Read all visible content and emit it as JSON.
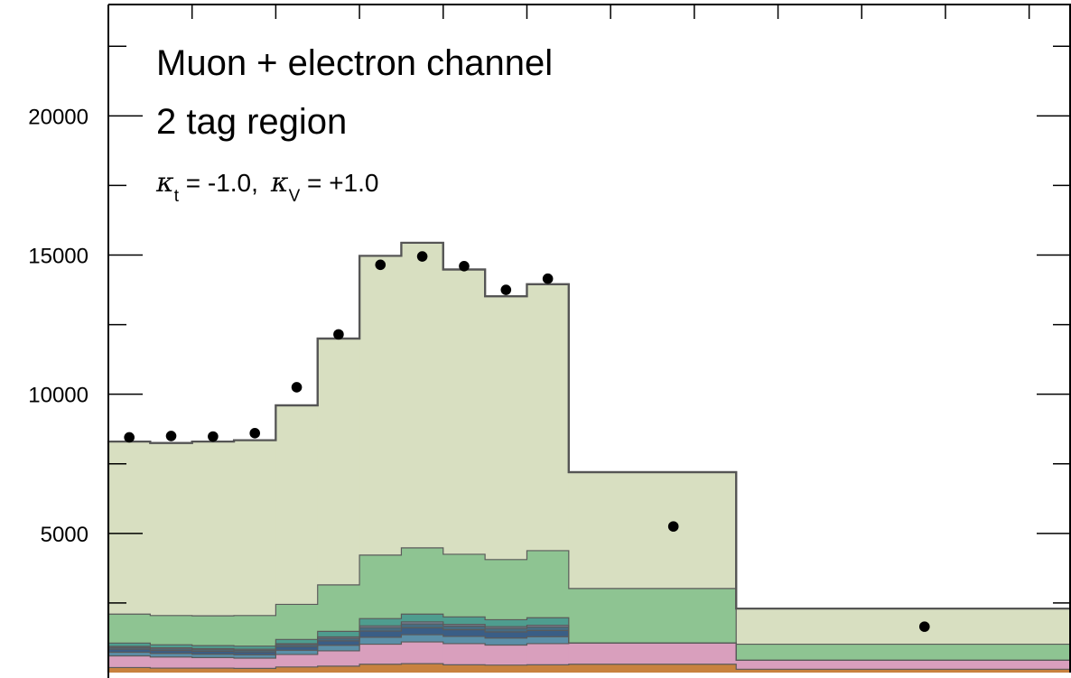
{
  "chart_data": {
    "type": "stacked-histogram",
    "annotations": {
      "line1": "Muon + electron channel",
      "line2": "2 tag region",
      "kappa_symbol": "κ",
      "kappa_t_sub": "t",
      "kappa_t_value": " = -1.0,",
      "kappa_v_sub": "V",
      "kappa_v_value": " = +1.0"
    },
    "xlim": [
      0,
      23
    ],
    "ylim": [
      0,
      24000
    ],
    "yticks": [
      5000,
      10000,
      15000,
      20000
    ],
    "ytick_labels": [
      "5000",
      "10000",
      "15000",
      "20000"
    ],
    "bin_edges": [
      0,
      1,
      2,
      3,
      4,
      5,
      6,
      7,
      8,
      9,
      10,
      11,
      15,
      23
    ],
    "stack": [
      {
        "color": "#c8823f",
        "values": [
          180,
          160,
          160,
          150,
          200,
          230,
          300,
          320,
          280,
          270,
          280,
          300,
          120
        ]
      },
      {
        "color": "#d99fbd",
        "values": [
          420,
          400,
          380,
          370,
          450,
          550,
          720,
          780,
          760,
          720,
          760,
          760,
          320
        ]
      },
      {
        "color": "#5b8fa8",
        "values": [
          130,
          130,
          120,
          120,
          150,
          200,
          250,
          260,
          260,
          250,
          250,
          0,
          0
        ]
      },
      {
        "color": "#3a5e86",
        "values": [
          110,
          100,
          100,
          100,
          130,
          160,
          220,
          250,
          240,
          220,
          220,
          0,
          0
        ]
      },
      {
        "color": "#466c82",
        "values": [
          60,
          60,
          60,
          60,
          70,
          90,
          130,
          140,
          130,
          130,
          130,
          0,
          0
        ]
      },
      {
        "color": "#7d8aa4",
        "values": [
          40,
          40,
          40,
          40,
          40,
          50,
          60,
          70,
          60,
          60,
          60,
          0,
          0
        ]
      },
      {
        "color": "#4e9d8f",
        "values": [
          120,
          110,
          110,
          110,
          150,
          200,
          260,
          280,
          270,
          250,
          270,
          0,
          0
        ]
      },
      {
        "color": "#8ec492",
        "values": [
          1040,
          1050,
          1070,
          1100,
          1260,
          1670,
          2280,
          2380,
          2250,
          2160,
          2410,
          1960,
          580
        ]
      },
      {
        "color": "#d8dfc1",
        "values": [
          6200,
          6200,
          6260,
          6300,
          7150,
          8850,
          10750,
          10960,
          10230,
          9460,
          9570,
          4180,
          1280
        ]
      }
    ],
    "data_points": {
      "x": [
        0.5,
        1.5,
        2.5,
        3.5,
        4.5,
        5.5,
        6.5,
        7.5,
        8.5,
        9.5,
        10.5,
        13.5,
        19.5
      ],
      "y": [
        8450,
        8500,
        8480,
        8600,
        10250,
        12150,
        14650,
        14950,
        14600,
        13750,
        14150,
        5250,
        1650
      ],
      "err": [
        90,
        90,
        90,
        90,
        100,
        110,
        120,
        120,
        120,
        115,
        120,
        70,
        40
      ]
    },
    "grid": false,
    "legend": "none"
  }
}
